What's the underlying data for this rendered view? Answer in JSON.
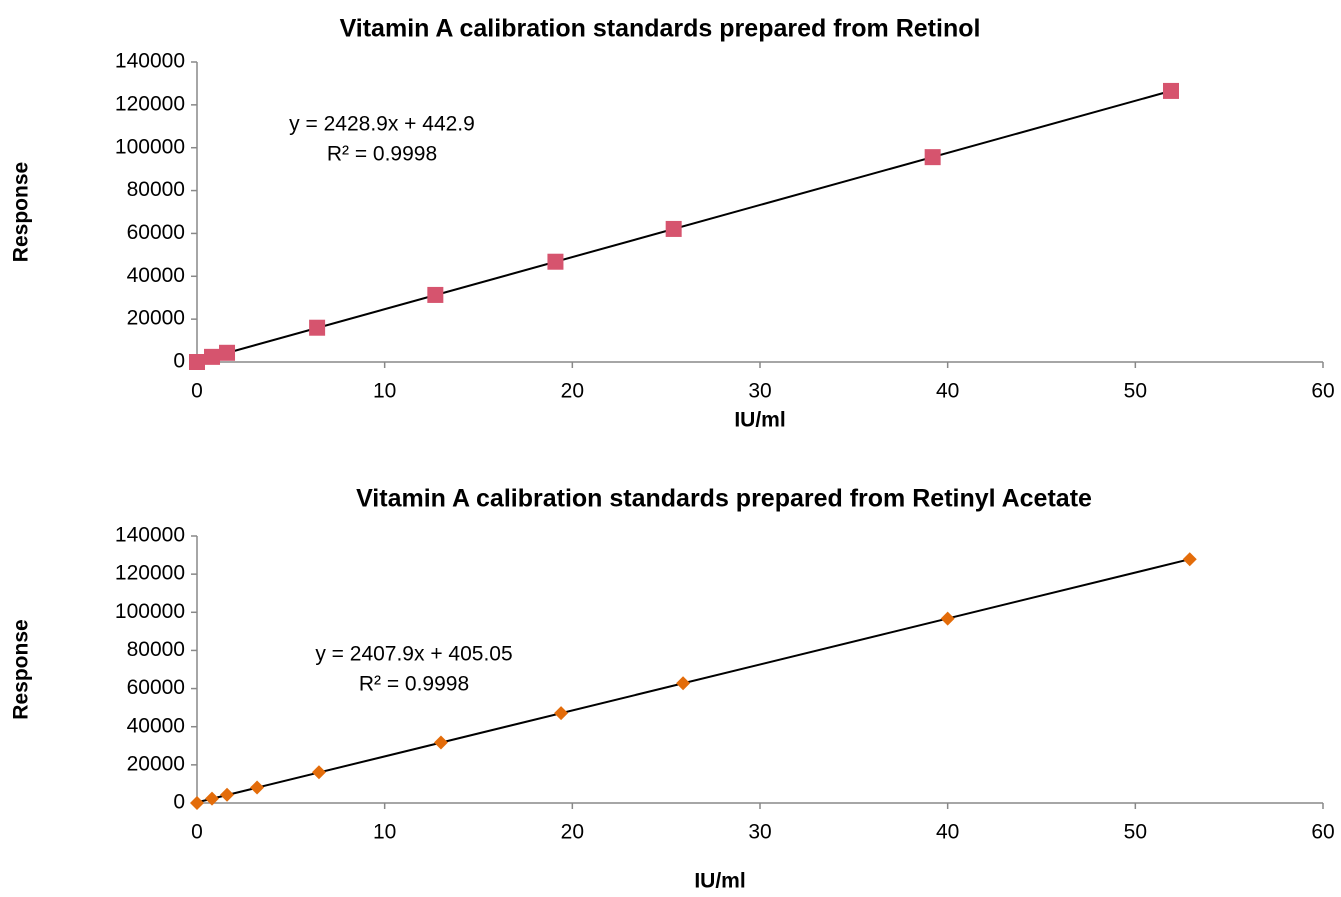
{
  "chart_data": [
    {
      "type": "scatter",
      "title": "Vitamin A calibration standards prepared from Retinol",
      "xlabel": "IU/ml",
      "ylabel": "Response",
      "annotations": [
        "y = 2428.9x + 442.9",
        "R² = 0.9998"
      ],
      "x": [
        0,
        0.8,
        1.6,
        6.4,
        12.7,
        19.1,
        25.4,
        39.2,
        51.9
      ],
      "values": [
        0,
        2400,
        4300,
        16000,
        31300,
        46800,
        62100,
        95600,
        126500
      ],
      "color": "#d6546e",
      "marker": "square",
      "xlim": [
        0,
        60
      ],
      "xticks": [
        0,
        10,
        20,
        30,
        40,
        50,
        60
      ],
      "ylim": [
        0,
        140000
      ],
      "yticks": [
        0,
        20000,
        40000,
        60000,
        80000,
        100000,
        120000,
        140000
      ]
    },
    {
      "type": "scatter",
      "title": "Vitamin A calibration standards prepared from Retinyl Acetate",
      "xlabel": "IU/ml",
      "ylabel": "Response",
      "annotations": [
        "y = 2407.9x + 405.05",
        "R² = 0.9998"
      ],
      "x": [
        0,
        0.8,
        1.6,
        3.2,
        6.5,
        13,
        19.4,
        25.9,
        40,
        52.9
      ],
      "values": [
        0,
        2300,
        4300,
        8100,
        16100,
        31700,
        47100,
        62800,
        96700,
        127800
      ],
      "color": "#e36c0a",
      "marker": "diamond",
      "xlim": [
        0,
        60
      ],
      "xticks": [
        0,
        10,
        20,
        30,
        40,
        50,
        60
      ],
      "ylim": [
        0,
        140000
      ],
      "yticks": [
        0,
        20000,
        40000,
        60000,
        80000,
        100000,
        120000,
        140000
      ]
    }
  ]
}
